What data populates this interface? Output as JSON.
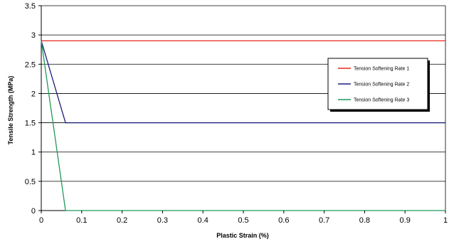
{
  "chart_data": {
    "type": "line",
    "title": "",
    "xlabel": "Plastic Strain (%)",
    "ylabel": "Tensile Strength (MPa)",
    "xlim": [
      0,
      1
    ],
    "ylim": [
      0,
      3.5
    ],
    "xticks": [
      "0",
      "0.1",
      "0.2",
      "0.3",
      "0.4",
      "0.5",
      "0.6",
      "0.7",
      "0.8",
      "0.9",
      "1"
    ],
    "yticks": [
      "0",
      "0.5",
      "1",
      "1.5",
      "2",
      "2.5",
      "3",
      "3.5"
    ],
    "grid": "horizontal",
    "legend_position": "right",
    "series": [
      {
        "name": "Tension Softening Rate 1",
        "color": "#e8291c",
        "x": [
          0,
          1
        ],
        "y": [
          2.9,
          2.9
        ]
      },
      {
        "name": "Tension Softening Rate 2",
        "color": "#1b1f7a",
        "x": [
          0,
          0.06,
          1
        ],
        "y": [
          2.9,
          1.5,
          1.5
        ]
      },
      {
        "name": "Tension Softening Rate 3",
        "color": "#1f9a5a",
        "x": [
          0,
          0.06,
          1
        ],
        "y": [
          2.9,
          0,
          0
        ]
      }
    ]
  }
}
